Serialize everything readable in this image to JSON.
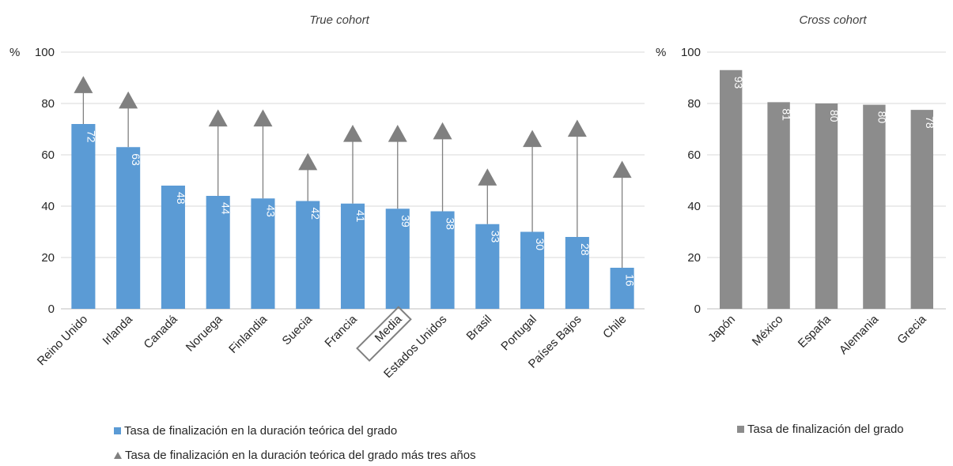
{
  "chart_data": [
    {
      "type": "bar",
      "title": "True cohort",
      "y_unit_label": "%",
      "ylim": [
        0,
        100
      ],
      "yticks": [
        0,
        20,
        40,
        60,
        80,
        100
      ],
      "grid": true,
      "categories": [
        "Reino Unido",
        "Irlanda",
        "Canadá",
        "Noruega",
        "Finlandia",
        "Suecia",
        "Francia",
        "Media",
        "Estados Unidos",
        "Brasil",
        "Portugal",
        "Países Bajos",
        "Chile"
      ],
      "highlighted_category": "Media",
      "series": [
        {
          "name": "Tasa de finalización en la duración teórica del grado",
          "kind": "bar",
          "color": "#5b9bd5",
          "values": [
            72,
            63,
            48,
            44,
            43,
            42,
            41,
            39,
            38,
            33,
            30,
            28,
            16
          ],
          "labels": [
            "72",
            "63",
            "48",
            "44",
            "43",
            "42",
            "41",
            "39",
            "38",
            "33",
            "30",
            "28",
            "16"
          ]
        },
        {
          "name": "Tasa de finalización en la duración teórica del grado más tres años",
          "kind": "marker",
          "marker": "triangle",
          "color": "#808080",
          "values": [
            87,
            81,
            null,
            74,
            74,
            57,
            68,
            68,
            69,
            51,
            66,
            70,
            54
          ]
        }
      ],
      "legend_position": "bottom-left"
    },
    {
      "type": "bar",
      "title": "Cross cohort",
      "y_unit_label": "%",
      "ylim": [
        0,
        100
      ],
      "yticks": [
        0,
        20,
        40,
        60,
        80,
        100
      ],
      "grid": true,
      "categories": [
        "Japón",
        "México",
        "España",
        "Alemania",
        "Grecia"
      ],
      "series": [
        {
          "name": "Tasa de finalización del grado",
          "kind": "bar",
          "color": "#8c8c8c",
          "values": [
            93,
            80.5,
            80,
            79.5,
            77.5
          ],
          "labels": [
            "93",
            "81",
            "80",
            "80",
            "78"
          ]
        }
      ],
      "legend_position": "bottom-right"
    }
  ]
}
